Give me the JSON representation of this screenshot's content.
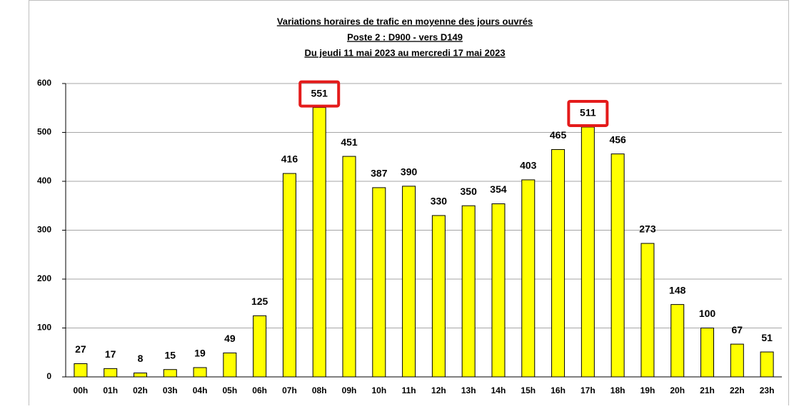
{
  "chart_data": {
    "type": "bar",
    "title": [
      "Variations horaires de trafic en moyenne des jours ouvrés",
      "Poste 2 : D900 - vers D149",
      "Du jeudi 11 mai 2023 au mercredi 17 mai 2023"
    ],
    "categories": [
      "00h",
      "01h",
      "02h",
      "03h",
      "04h",
      "05h",
      "06h",
      "07h",
      "08h",
      "09h",
      "10h",
      "11h",
      "12h",
      "13h",
      "14h",
      "15h",
      "16h",
      "17h",
      "18h",
      "19h",
      "20h",
      "21h",
      "22h",
      "23h"
    ],
    "values": [
      27,
      17,
      8,
      15,
      19,
      49,
      125,
      416,
      551,
      451,
      387,
      390,
      330,
      350,
      354,
      403,
      465,
      511,
      456,
      273,
      148,
      100,
      67,
      51
    ],
    "color": "#ffff00",
    "ylim": [
      0,
      600
    ],
    "yticks": [
      0,
      100,
      200,
      300,
      400,
      500,
      600
    ],
    "grid": true,
    "highlight": [
      8,
      17
    ],
    "highlight_color": "#e41b1b"
  }
}
